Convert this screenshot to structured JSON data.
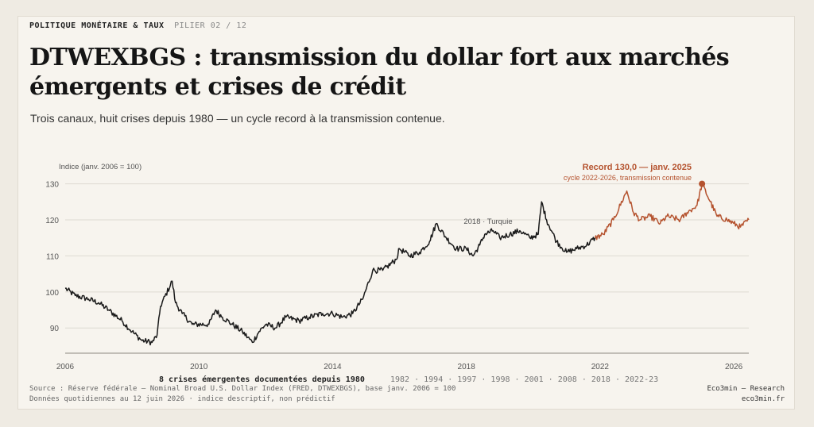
{
  "header": {
    "section": "POLITIQUE MONÉTAIRE & TAUX",
    "pill": "PILIER 02 / 12",
    "title": "DTWEXBGS : transmission du dollar fort aux marchés émergents et crises de crédit",
    "subtitle": "Trois canaux, huit crises depuis 1980 — un cycle record à la transmission contenue."
  },
  "footer": {
    "source": "Source : Réserve fédérale — Nominal Broad U.S. Dollar Index (FRED, DTWEXBGS), base janv. 2006 = 100",
    "note": "Données quotidiennes au 12 juin 2026 · indice descriptif, non prédictif",
    "brand": "Eco3min — Research",
    "site": "eco3min.fr"
  },
  "colors": {
    "history": "#1a1a1a",
    "recent": "#b5532f",
    "grid": "#dedad2",
    "axis": "#8c8880"
  },
  "chart_data": {
    "type": "line",
    "ylabel": "Indice (janv. 2006 = 100)",
    "xlim": [
      2006,
      2026.45
    ],
    "ylim": [
      83,
      133
    ],
    "yticks": [
      90,
      100,
      110,
      120,
      130
    ],
    "xticks": [
      2006,
      2010,
      2014,
      2018,
      2022,
      2026
    ],
    "grid": true,
    "series": [
      {
        "role": "history",
        "points": [
          [
            2006.0,
            101
          ],
          [
            2006.3,
            99
          ],
          [
            2006.7,
            98
          ],
          [
            2007.0,
            97
          ],
          [
            2007.3,
            95
          ],
          [
            2007.7,
            92
          ],
          [
            2008.0,
            89
          ],
          [
            2008.3,
            86.5
          ],
          [
            2008.6,
            86
          ],
          [
            2008.75,
            88
          ],
          [
            2008.85,
            96
          ],
          [
            2009.2,
            103
          ],
          [
            2009.3,
            97
          ],
          [
            2009.5,
            94
          ],
          [
            2009.8,
            91
          ],
          [
            2010.3,
            91
          ],
          [
            2010.5,
            95
          ],
          [
            2010.7,
            93
          ],
          [
            2011.0,
            91
          ],
          [
            2011.3,
            89
          ],
          [
            2011.6,
            86
          ],
          [
            2011.8,
            89
          ],
          [
            2012.0,
            91
          ],
          [
            2012.3,
            90
          ],
          [
            2012.6,
            93
          ],
          [
            2013.0,
            92
          ],
          [
            2013.3,
            93
          ],
          [
            2013.7,
            94
          ],
          [
            2014.0,
            94
          ],
          [
            2014.3,
            93
          ],
          [
            2014.6,
            94
          ],
          [
            2014.9,
            98
          ],
          [
            2015.2,
            106
          ],
          [
            2015.5,
            106
          ],
          [
            2015.9,
            109
          ],
          [
            2016.0,
            112
          ],
          [
            2016.3,
            110
          ],
          [
            2016.6,
            111
          ],
          [
            2016.9,
            114
          ],
          [
            2017.1,
            119
          ],
          [
            2017.4,
            115
          ],
          [
            2017.7,
            112
          ],
          [
            2018.0,
            112
          ],
          [
            2018.2,
            110
          ],
          [
            2018.4,
            113
          ],
          [
            2018.55,
            116
          ],
          [
            2018.8,
            117
          ],
          [
            2019.0,
            115
          ],
          [
            2019.3,
            116
          ],
          [
            2019.6,
            117
          ],
          [
            2019.9,
            115
          ],
          [
            2020.15,
            116
          ],
          [
            2020.25,
            125
          ],
          [
            2020.4,
            120
          ],
          [
            2020.7,
            114
          ],
          [
            2021.0,
            111
          ],
          [
            2021.3,
            112
          ],
          [
            2021.6,
            113
          ],
          [
            2021.85,
            115
          ]
        ]
      },
      {
        "role": "recent",
        "label": "cycle 2022-2026, transmission contenue",
        "points": [
          [
            2021.85,
            115
          ],
          [
            2022.1,
            116
          ],
          [
            2022.4,
            120
          ],
          [
            2022.8,
            128
          ],
          [
            2023.0,
            122
          ],
          [
            2023.2,
            120
          ],
          [
            2023.5,
            121
          ],
          [
            2023.8,
            119
          ],
          [
            2024.0,
            121
          ],
          [
            2024.4,
            120
          ],
          [
            2024.6,
            122
          ],
          [
            2024.9,
            124
          ],
          [
            2025.05,
            130
          ],
          [
            2025.3,
            125
          ],
          [
            2025.5,
            121
          ],
          [
            2025.8,
            120
          ],
          [
            2026.0,
            119
          ],
          [
            2026.2,
            118
          ],
          [
            2026.45,
            120
          ]
        ]
      }
    ],
    "annotations": [
      {
        "text": "2018 · Turquie",
        "x": 2018.65,
        "y": 120
      },
      {
        "text": "Record 130,0 — janv. 2025",
        "x": 2025.05,
        "y": 130,
        "kind": "record"
      }
    ],
    "crises": {
      "label": "8 crises émergentes documentées depuis 1980",
      "years": [
        "1982",
        "1994",
        "1997",
        "1998",
        "2001",
        "2008",
        "2018",
        "2022-23"
      ]
    }
  }
}
